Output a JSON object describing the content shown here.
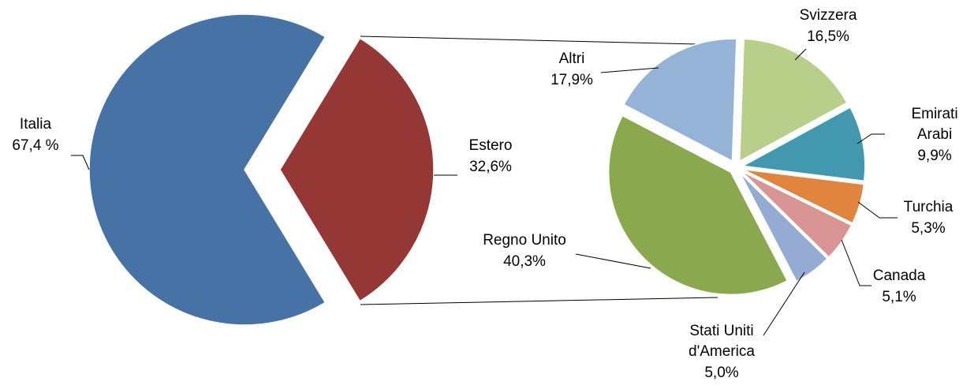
{
  "chart_data": [
    {
      "type": "pie",
      "categories": [
        "Italia",
        "Estero"
      ],
      "values": [
        67.4,
        32.6
      ],
      "value_labels": [
        "67,4 %",
        "32,6%"
      ],
      "colors": [
        "#4672a6",
        "#953735"
      ]
    },
    {
      "type": "pie",
      "categories": [
        "Svizzera",
        "Emirati Arabi",
        "Turchia",
        "Canada",
        "Stati Uniti d'America",
        "Regno Unito",
        "Altri"
      ],
      "values": [
        16.5,
        9.9,
        5.3,
        5.1,
        5.0,
        40.3,
        17.9
      ],
      "value_labels": [
        "16,5%",
        "9,9%",
        "5,3%",
        "5,1%",
        "5,0%",
        "40,3%",
        "17,9%"
      ],
      "colors": [
        "#b8cf8a",
        "#4198af",
        "#e0843e",
        "#d99594",
        "#95abd3",
        "#8aa84e",
        "#95b3d7"
      ]
    }
  ]
}
